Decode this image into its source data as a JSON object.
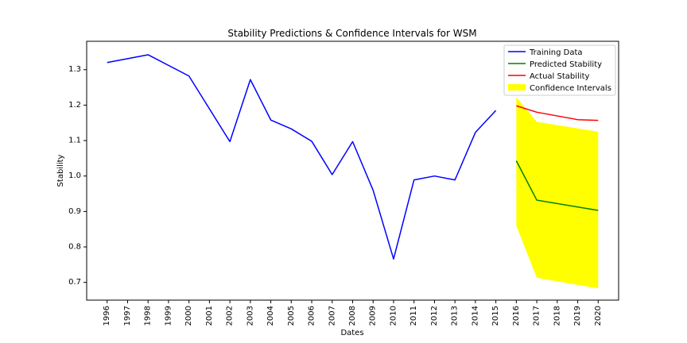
{
  "chart_data": {
    "type": "line",
    "title": "Stability Predictions & Confidence Intervals for WSM",
    "xlabel": "Dates",
    "ylabel": "Stability",
    "x_ticks": [
      "1996",
      "1997",
      "1998",
      "1999",
      "2000",
      "2001",
      "2002",
      "2003",
      "2004",
      "2005",
      "2006",
      "2007",
      "2008",
      "2009",
      "2010",
      "2011",
      "2012",
      "2013",
      "2014",
      "2015",
      "2016",
      "2017",
      "2018",
      "2019",
      "2020"
    ],
    "y_ticks": [
      "0.7",
      "0.8",
      "0.9",
      "1.0",
      "1.1",
      "1.2",
      "1.3"
    ],
    "xlim": [
      1995.0,
      2021.0
    ],
    "ylim": [
      0.65,
      1.38
    ],
    "grid": false,
    "legend_position": "top-right",
    "series": [
      {
        "name": "Training Data",
        "color": "#0000ff",
        "x": [
          1996,
          1998,
          2000,
          2002,
          2003,
          2004,
          2005,
          2006,
          2007,
          2008,
          2009,
          2010,
          2011,
          2012,
          2013,
          2014,
          2015
        ],
        "values": [
          1.32,
          1.342,
          1.282,
          1.097,
          1.272,
          1.158,
          1.133,
          1.098,
          1.004,
          1.097,
          0.96,
          0.766,
          0.989,
          1.0,
          0.989,
          1.123,
          1.185
        ]
      },
      {
        "name": "Predicted Stability",
        "color": "#008000",
        "x": [
          2016,
          2017,
          2020
        ],
        "values": [
          1.043,
          0.932,
          0.903
        ]
      },
      {
        "name": "Actual Stability",
        "color": "#ff0000",
        "x": [
          2016,
          2017,
          2019,
          2020
        ],
        "values": [
          1.198,
          1.18,
          1.159,
          1.157
        ]
      }
    ],
    "confidence_interval": {
      "name": "Confidence Intervals",
      "color": "#ffff00",
      "x": [
        2016,
        2017,
        2020
      ],
      "lower": [
        0.86,
        0.713,
        0.683
      ],
      "upper": [
        1.222,
        1.153,
        1.125
      ]
    }
  }
}
